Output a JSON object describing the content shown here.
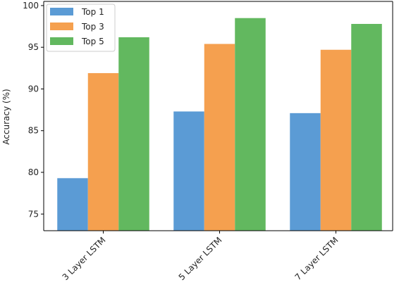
{
  "chart_data": {
    "type": "bar",
    "categories": [
      "3 Layer LSTM",
      "5 Layer LSTM",
      "7 Layer LSTM"
    ],
    "series": [
      {
        "name": "Top 1",
        "values": [
          79.3,
          87.3,
          87.1
        ],
        "color": "#5b9bd5"
      },
      {
        "name": "Top 3",
        "values": [
          91.9,
          95.4,
          94.7
        ],
        "color": "#f5a04f"
      },
      {
        "name": "Top 5",
        "values": [
          96.2,
          98.5,
          97.8
        ],
        "color": "#62b85f"
      }
    ],
    "ylabel": "Accuracy (%)",
    "xlabel": "",
    "ylim": [
      73,
      100.5
    ],
    "yticks": [
      75,
      80,
      85,
      90,
      95,
      100
    ],
    "legend": "top-left",
    "grid": false
  }
}
